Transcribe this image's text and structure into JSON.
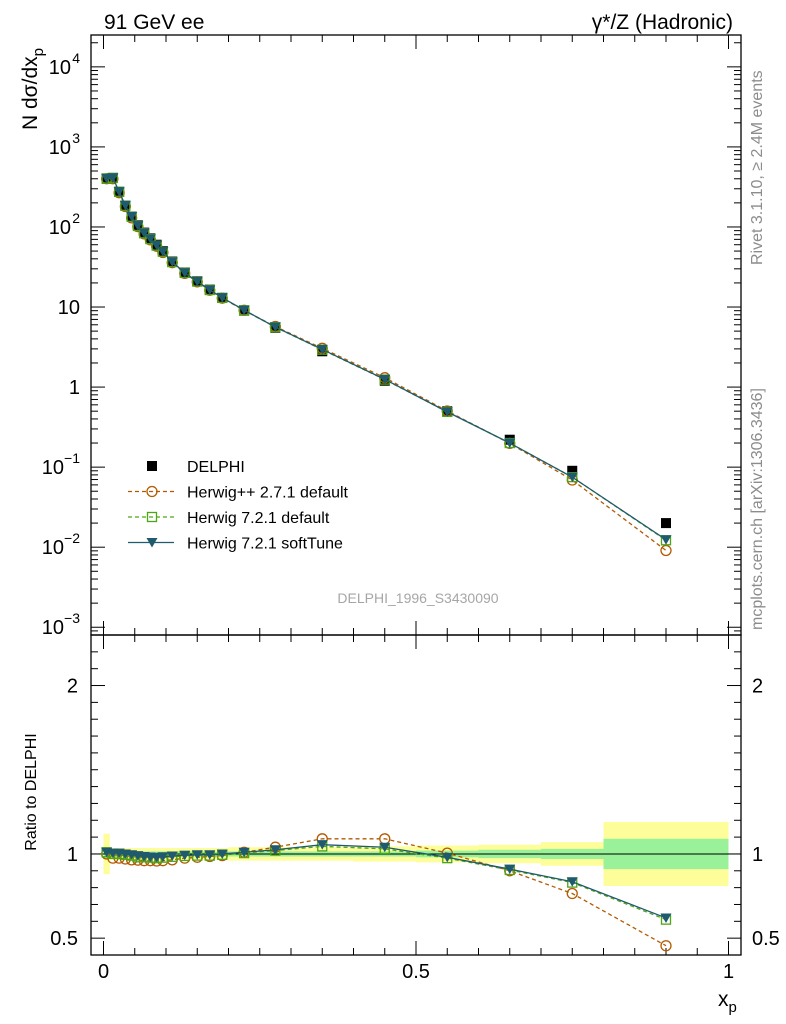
{
  "header": {
    "left": "91 GeV ee",
    "right": "γ*/Z (Hadronic)"
  },
  "side_text": {
    "rivet": "Rivet 3.1.10, ≥ 2.4M events",
    "mcplots": "mcplots.cern.ch [arXiv:1306.3436]"
  },
  "analysis_id": "DELPHI_1996_S3430090",
  "chart_data": [
    {
      "type": "scatter",
      "panel": "main",
      "xlabel_main": "x",
      "xlabel_sub": "p",
      "ylabel_parts": [
        "N dσ/dx",
        "p"
      ],
      "yscale": "log",
      "ylim": [
        0.0008,
        25000
      ],
      "xlim": [
        -0.02,
        1.02
      ],
      "y_ticks": [
        {
          "v": 0.001,
          "base": "10",
          "exp": "−3"
        },
        {
          "v": 0.01,
          "base": "10",
          "exp": "−2"
        },
        {
          "v": 0.1,
          "base": "10",
          "exp": "−1"
        },
        {
          "v": 1,
          "base": "1",
          "exp": ""
        },
        {
          "v": 10,
          "base": "10",
          "exp": ""
        },
        {
          "v": 100,
          "base": "10",
          "exp": "2"
        },
        {
          "v": 1000,
          "base": "10",
          "exp": "3"
        },
        {
          "v": 10000,
          "base": "10",
          "exp": "4"
        }
      ],
      "x": [
        0.005,
        0.015,
        0.025,
        0.035,
        0.045,
        0.055,
        0.065,
        0.075,
        0.085,
        0.095,
        0.11,
        0.13,
        0.15,
        0.17,
        0.19,
        0.225,
        0.275,
        0.35,
        0.45,
        0.55,
        0.65,
        0.75,
        0.9
      ],
      "series": [
        {
          "name": "DELPHI",
          "color": "#000000",
          "marker": "square",
          "values": [
            400,
            410,
            275,
            185,
            135,
            105,
            85,
            72,
            60,
            50,
            37,
            27,
            21,
            16.5,
            13,
            9,
            5.5,
            2.8,
            1.2,
            0.5,
            0.22,
            0.09,
            0.02
          ]
        },
        {
          "name": "Herwig++ 2.7.1 default",
          "color": "#b35a00",
          "marker": "circle-open",
          "dash": true,
          "values": [
            400,
            400,
            268,
            180,
            130,
            101,
            82,
            69,
            57.5,
            48,
            35.8,
            26.3,
            20.6,
            16.2,
            12.9,
            9.1,
            5.7,
            3.05,
            1.31,
            0.503,
            0.198,
            0.069,
            0.0091
          ]
        },
        {
          "name": "Herwig 7.2.1 default",
          "color": "#4da614",
          "marker": "square-open",
          "dash": true,
          "values": [
            404,
            410,
            275,
            184,
            134,
            103,
            83.5,
            70.5,
            58.5,
            49,
            36.4,
            26.7,
            20.8,
            16.3,
            13.0,
            9.1,
            5.6,
            2.93,
            1.24,
            0.49,
            0.2,
            0.075,
            0.0122
          ]
        },
        {
          "name": "Herwig 7.2.1 softTune",
          "color": "#1f5a6e",
          "marker": "triangle-down",
          "dash": false,
          "values": [
            404,
            412,
            276,
            186,
            135,
            104,
            84,
            71,
            59,
            49.3,
            36.6,
            26.8,
            20.9,
            16.4,
            13.1,
            9.15,
            5.62,
            2.95,
            1.25,
            0.49,
            0.2,
            0.075,
            0.0124
          ]
        }
      ]
    },
    {
      "type": "line",
      "panel": "ratio",
      "ylabel": "Ratio to DELPHI",
      "xlabel_main": "x",
      "xlabel_sub": "p",
      "ylim": [
        0.4,
        2.3
      ],
      "xlim": [
        -0.02,
        1.02
      ],
      "x_ticks": [
        {
          "v": 0,
          "label": "0"
        },
        {
          "v": 0.5,
          "label": "0.5"
        },
        {
          "v": 1,
          "label": "1"
        }
      ],
      "y_ticks": [
        {
          "v": 0.5,
          "label": "0.5"
        },
        {
          "v": 1,
          "label": "1"
        },
        {
          "v": 2,
          "label": "2"
        }
      ],
      "bands": {
        "inner_color": "#99f299",
        "outer_color": "#fdfd99",
        "bins": [
          {
            "lo": 0.0,
            "hi": 0.01,
            "inner": 0.03,
            "outer": 0.12
          },
          {
            "lo": 0.01,
            "hi": 0.1,
            "inner": 0.015,
            "outer": 0.035
          },
          {
            "lo": 0.1,
            "hi": 0.2,
            "inner": 0.015,
            "outer": 0.035
          },
          {
            "lo": 0.2,
            "hi": 0.3,
            "inner": 0.015,
            "outer": 0.04
          },
          {
            "lo": 0.3,
            "hi": 0.4,
            "inner": 0.015,
            "outer": 0.04
          },
          {
            "lo": 0.4,
            "hi": 0.5,
            "inner": 0.015,
            "outer": 0.045
          },
          {
            "lo": 0.5,
            "hi": 0.6,
            "inner": 0.02,
            "outer": 0.05
          },
          {
            "lo": 0.6,
            "hi": 0.7,
            "inner": 0.025,
            "outer": 0.055
          },
          {
            "lo": 0.7,
            "hi": 0.8,
            "inner": 0.03,
            "outer": 0.07
          },
          {
            "lo": 0.8,
            "hi": 1.0,
            "inner": 0.09,
            "outer": 0.19
          }
        ]
      },
      "x": [
        0.005,
        0.015,
        0.025,
        0.035,
        0.045,
        0.055,
        0.065,
        0.075,
        0.085,
        0.095,
        0.11,
        0.13,
        0.15,
        0.17,
        0.19,
        0.225,
        0.275,
        0.35,
        0.45,
        0.55,
        0.65,
        0.75,
        0.9
      ],
      "series": [
        {
          "name": "Herwig++ 2.7.1 default",
          "color": "#b35a00",
          "marker": "circle-open",
          "dash": true,
          "values": [
            1.0,
            0.975,
            0.975,
            0.97,
            0.965,
            0.963,
            0.96,
            0.96,
            0.958,
            0.96,
            0.965,
            0.975,
            0.98,
            0.985,
            0.99,
            1.01,
            1.04,
            1.09,
            1.09,
            1.005,
            0.9,
            0.765,
            0.455
          ]
        },
        {
          "name": "Herwig 7.2.1 default",
          "color": "#4da614",
          "marker": "square-open",
          "dash": true,
          "values": [
            1.01,
            1.0,
            1.0,
            0.995,
            0.99,
            0.98,
            0.98,
            0.978,
            0.975,
            0.978,
            0.983,
            0.988,
            0.99,
            0.99,
            0.995,
            1.005,
            1.02,
            1.045,
            1.03,
            0.975,
            0.905,
            0.83,
            0.61
          ]
        },
        {
          "name": "Herwig 7.2.1 softTune",
          "color": "#1f5a6e",
          "marker": "triangle-down",
          "dash": false,
          "values": [
            1.01,
            1.005,
            1.005,
            1.0,
            0.995,
            0.99,
            0.985,
            0.982,
            0.98,
            0.983,
            0.988,
            0.992,
            0.995,
            0.995,
            1.0,
            1.01,
            1.025,
            1.055,
            1.04,
            0.98,
            0.91,
            0.835,
            0.62
          ]
        }
      ]
    }
  ]
}
